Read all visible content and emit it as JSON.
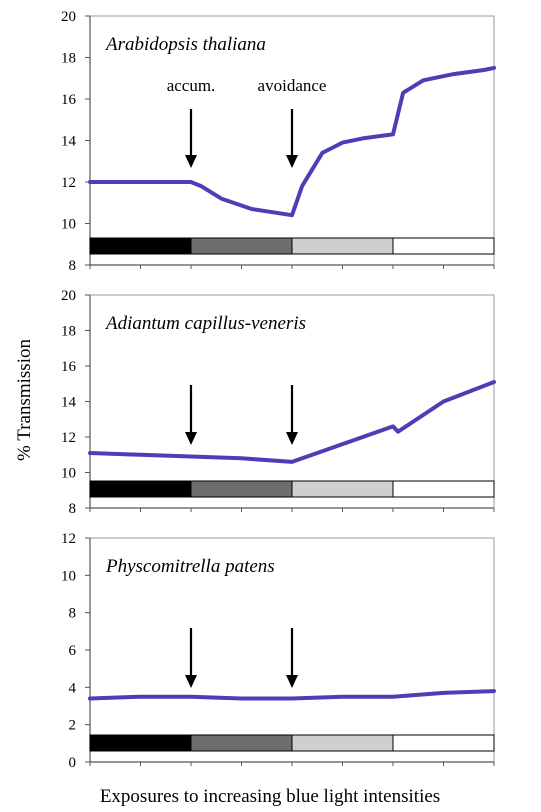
{
  "figure": {
    "ylabel": "% Transmission",
    "xlabel": "Exposures to increasing blue light intensities",
    "line_color": "#4a3fb5",
    "light_bar_colors": [
      "#000000",
      "#6e6e6e",
      "#cfcfcf",
      "#ffffff"
    ]
  },
  "chart_data": [
    {
      "type": "line",
      "title": "Arabidopsis thaliana",
      "ylim": [
        8,
        20
      ],
      "yticks": [
        "8",
        "10",
        "12",
        "14",
        "16",
        "18",
        "20"
      ],
      "grid": false,
      "annotations": [
        {
          "label": "accum.",
          "x": 1.0
        },
        {
          "label": "avoidance",
          "x": 2.0
        }
      ],
      "series": [
        {
          "x": [
            0,
            0.5,
            1.0,
            1.1,
            1.3,
            1.6,
            2.0,
            2.1,
            2.3,
            2.5,
            2.7,
            3.0,
            3.1,
            3.3,
            3.6,
            3.9,
            4.0
          ],
          "y": [
            12.0,
            12.0,
            12.0,
            11.8,
            11.2,
            10.7,
            10.4,
            11.8,
            13.4,
            13.9,
            14.1,
            14.3,
            16.3,
            16.9,
            17.2,
            17.4,
            17.5
          ]
        }
      ]
    },
    {
      "type": "line",
      "title": "Adiantum capillus-veneris",
      "ylim": [
        8,
        20
      ],
      "yticks": [
        "8",
        "10",
        "12",
        "14",
        "16",
        "18",
        "20"
      ],
      "grid": false,
      "annotations": [
        {
          "label": "",
          "x": 1.0
        },
        {
          "label": "",
          "x": 2.0
        }
      ],
      "series": [
        {
          "x": [
            0,
            0.5,
            1.0,
            1.5,
            2.0,
            2.5,
            2.9,
            3.0,
            3.05,
            3.5,
            4.0
          ],
          "y": [
            11.1,
            11.0,
            10.9,
            10.8,
            10.6,
            11.6,
            12.4,
            12.6,
            12.3,
            14.0,
            15.1
          ]
        }
      ]
    },
    {
      "type": "line",
      "title": "Physcomitrella patens",
      "ylim": [
        0,
        12
      ],
      "yticks": [
        "0",
        "2",
        "4",
        "6",
        "8",
        "10",
        "12"
      ],
      "grid": false,
      "annotations": [
        {
          "label": "",
          "x": 1.0
        },
        {
          "label": "",
          "x": 2.0
        }
      ],
      "series": [
        {
          "x": [
            0,
            0.5,
            1.0,
            1.5,
            2.0,
            2.5,
            3.0,
            3.5,
            4.0
          ],
          "y": [
            3.4,
            3.5,
            3.5,
            3.4,
            3.4,
            3.5,
            3.5,
            3.7,
            3.8
          ]
        }
      ]
    }
  ]
}
